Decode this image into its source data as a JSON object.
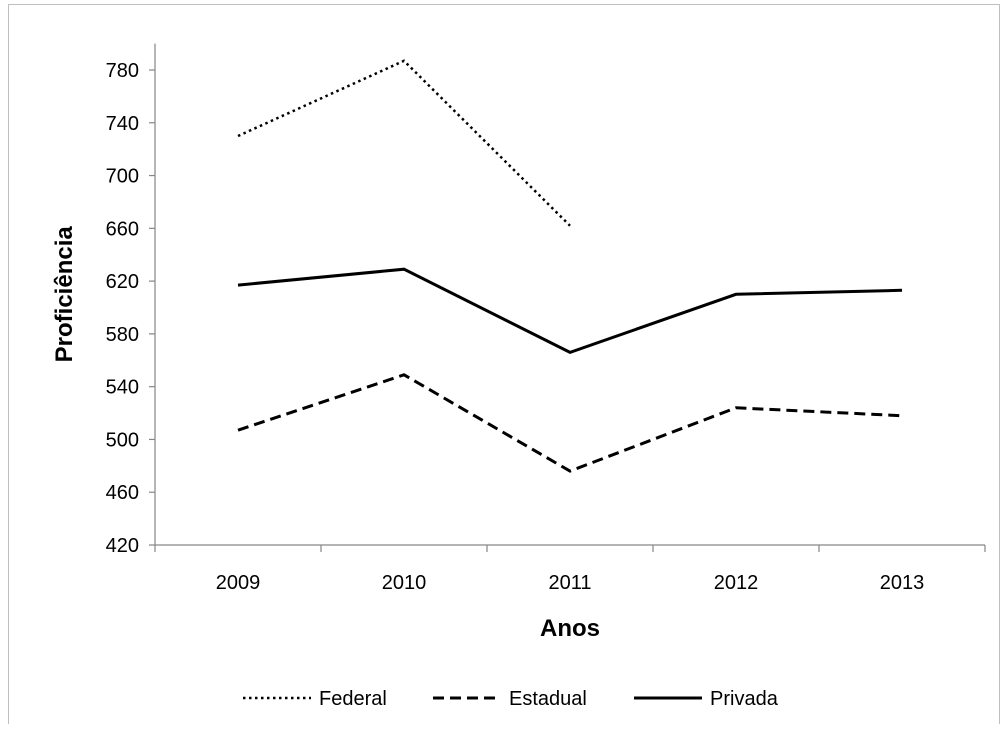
{
  "chart_data": {
    "type": "line",
    "categories": [
      "2009",
      "2010",
      "2011",
      "2012",
      "2013"
    ],
    "series": [
      {
        "name": "Federal",
        "values": [
          730,
          787,
          662,
          null,
          null
        ],
        "style": "dotted",
        "color": "#000000"
      },
      {
        "name": "Estadual",
        "values": [
          507,
          549,
          476,
          524,
          518
        ],
        "style": "dashed",
        "color": "#000000"
      },
      {
        "name": "Privada",
        "values": [
          617,
          629,
          566,
          610,
          613
        ],
        "style": "solid",
        "color": "#000000"
      }
    ],
    "xlabel": "Anos",
    "ylabel": "Proficiência",
    "ylim": [
      420,
      800
    ],
    "yticks": [
      420,
      460,
      500,
      540,
      580,
      620,
      660,
      700,
      740,
      780
    ],
    "grid": false,
    "legend_position": "bottom"
  }
}
